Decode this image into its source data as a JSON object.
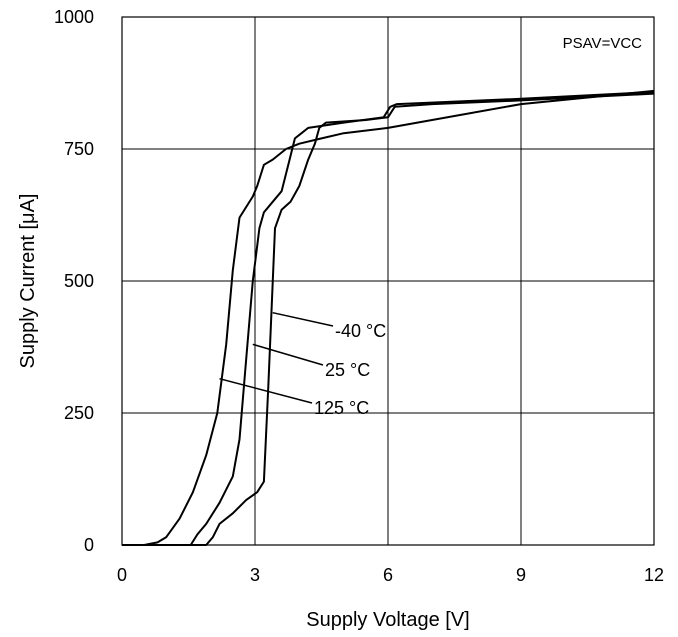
{
  "chart_data": {
    "type": "line",
    "title": "",
    "xlabel": "Supply Voltage [V]",
    "ylabel": "Supply Current [μA]",
    "xlim": [
      0,
      12
    ],
    "ylim": [
      0,
      1000
    ],
    "xticks": [
      "0",
      "3",
      "6",
      "9",
      "12"
    ],
    "yticks": [
      "0",
      "250",
      "500",
      "750",
      "1000"
    ],
    "grid": true,
    "annotation": "PSAV=VCC",
    "series": [
      {
        "name": "-40 °C",
        "x": [
          0,
          1.9,
          2.05,
          2.2,
          2.5,
          2.8,
          3.05,
          3.2,
          3.3,
          3.45,
          3.6,
          3.8,
          4.0,
          4.2,
          4.35,
          4.45,
          4.6,
          5.5,
          6.0,
          6.15,
          7.0,
          9.0,
          12.0
        ],
        "y": [
          0,
          0,
          15,
          40,
          60,
          85,
          100,
          120,
          300,
          600,
          635,
          650,
          680,
          730,
          760,
          790,
          800,
          805,
          810,
          830,
          835,
          842,
          855
        ]
      },
      {
        "name": "25 °C",
        "x": [
          0,
          1.55,
          1.7,
          1.9,
          2.2,
          2.5,
          2.65,
          2.8,
          2.95,
          3.1,
          3.2,
          3.4,
          3.6,
          3.75,
          3.9,
          4.05,
          4.2,
          5.0,
          5.9,
          6.05,
          6.2,
          9.0,
          12.0
        ],
        "y": [
          0,
          0,
          20,
          40,
          80,
          130,
          200,
          350,
          500,
          600,
          630,
          650,
          670,
          720,
          770,
          780,
          790,
          800,
          810,
          830,
          835,
          845,
          858
        ]
      },
      {
        "name": "125 °C",
        "x": [
          0,
          0.5,
          0.8,
          1.0,
          1.3,
          1.6,
          1.9,
          2.15,
          2.35,
          2.5,
          2.65,
          2.8,
          2.95,
          3.05,
          3.2,
          3.4,
          3.7,
          4.0,
          4.5,
          5.0,
          6.0,
          9.0,
          12.0
        ],
        "y": [
          0,
          0,
          5,
          15,
          50,
          100,
          170,
          250,
          380,
          520,
          620,
          640,
          660,
          680,
          720,
          730,
          750,
          760,
          770,
          780,
          790,
          835,
          860
        ]
      }
    ]
  }
}
